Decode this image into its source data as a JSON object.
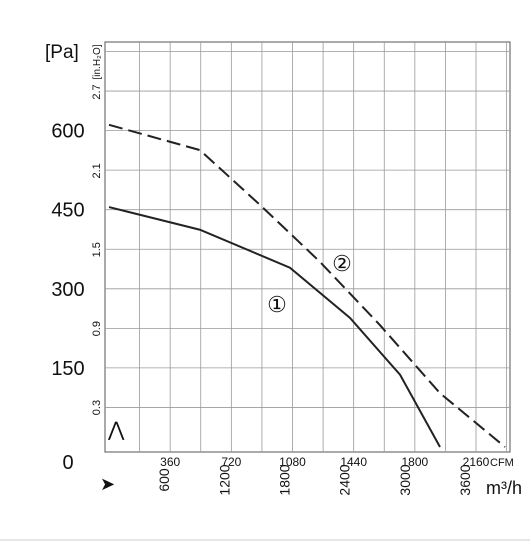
{
  "chart_data": {
    "type": "line",
    "y_label": "[Pa]",
    "y2_label": "[in.H₂O]",
    "x_label": "CFM",
    "x2_label": "m³/h",
    "xlim": [
      0,
      2360
    ],
    "xticks": [
      360,
      720,
      1080,
      1440,
      1800,
      2160
    ],
    "x2lim": [
      0,
      4000
    ],
    "x2ticks": [
      600,
      1200,
      1800,
      2400,
      3000,
      3600
    ],
    "ylim": [
      0,
      768
    ],
    "yticks": [
      0,
      150,
      300,
      450,
      600
    ],
    "y2lim": [
      0,
      3.08
    ],
    "y2ticks": [
      0.3,
      0.9,
      1.5,
      2.1,
      2.7
    ],
    "grid": true,
    "xgrid": [
      180,
      360,
      540,
      720,
      900,
      1080,
      1260,
      1440,
      1620,
      1800,
      1980,
      2160,
      2340
    ],
    "ygrid": [
      75,
      150,
      225,
      300,
      375,
      450,
      525,
      600,
      675,
      750
    ],
    "series": [
      {
        "name": "①",
        "color": "#222222",
        "dash": false,
        "x": [
          0,
          535,
          1065,
          1418,
          1713,
          1948
        ],
        "values": [
          455,
          412,
          340,
          245,
          137,
          0
        ]
      },
      {
        "name": "②",
        "color": "#222222",
        "dash": true,
        "x": [
          0,
          535,
          889,
          1242,
          1595,
          1948,
          2331
        ],
        "values": [
          611,
          563,
          459,
          351,
          231,
          102,
          0
        ]
      }
    ]
  }
}
